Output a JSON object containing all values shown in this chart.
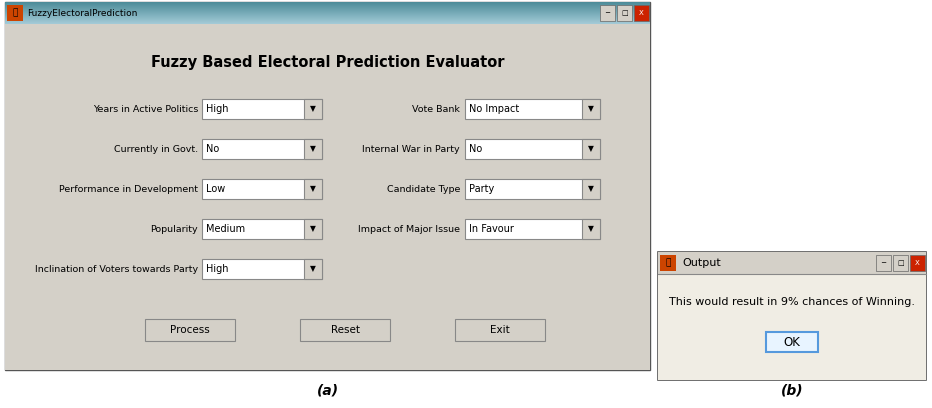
{
  "title_a": "Fuzzy Based Electoral Prediction Evaluator",
  "window_title_a": "FuzzyElectoralPrediction",
  "caption_a": "(a)",
  "caption_b": "(b)",
  "bg_color_main": "#d4d0c8",
  "left_labels": [
    "Years in Active Politics",
    "Currently in Govt.",
    "Performance in Development",
    "Popularity",
    "Inclination of Voters towards Party"
  ],
  "left_values": [
    "High",
    "No",
    "Low",
    "Medium",
    "High"
  ],
  "right_labels": [
    "Vote Bank",
    "Internal War in Party",
    "Candidate Type",
    "Impact of Major Issue"
  ],
  "right_values": [
    "No Impact",
    "No",
    "Party",
    "In Favour"
  ],
  "buttons": [
    "Process",
    "Reset",
    "Exit"
  ],
  "output_title": "Output",
  "output_text": "This would result in 9% chances of Winning.",
  "output_btn": "OK",
  "fig_bg": "#ffffff"
}
